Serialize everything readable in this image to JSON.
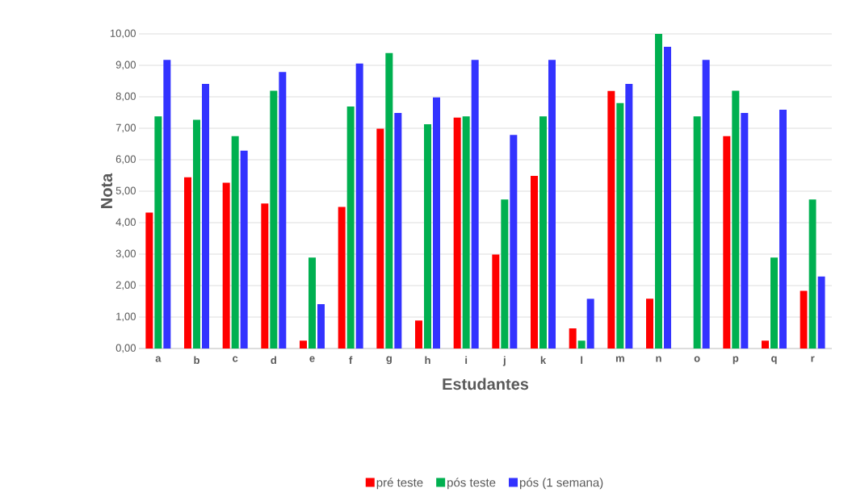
{
  "chart_data": {
    "type": "bar",
    "xlabel": "Estudantes",
    "ylabel": "Nota",
    "categories": [
      "a",
      "b",
      "c",
      "d",
      "e",
      "f",
      "g",
      "h",
      "i",
      "j",
      "k",
      "l",
      "m",
      "n",
      "o",
      "p",
      "q",
      "r"
    ],
    "series": [
      {
        "name": "pré teste",
        "color": "#ff0000",
        "values": [
          4.32,
          5.44,
          5.27,
          4.61,
          0.25,
          4.5,
          6.99,
          0.89,
          7.34,
          2.99,
          5.49,
          0.64,
          8.19,
          1.58,
          null,
          6.75,
          0.25,
          1.83
        ]
      },
      {
        "name": "pós teste",
        "color": "#00b050",
        "values": [
          7.38,
          7.27,
          6.75,
          8.19,
          2.89,
          7.69,
          9.39,
          7.13,
          7.38,
          4.74,
          7.38,
          0.25,
          7.8,
          10.0,
          7.38,
          8.19,
          2.89,
          4.74
        ]
      },
      {
        "name": "pós (1 semana)",
        "color": "#3333ff",
        "values": [
          9.17,
          8.41,
          6.29,
          8.79,
          1.41,
          9.06,
          7.49,
          7.98,
          9.17,
          6.79,
          9.17,
          1.58,
          8.41,
          9.59,
          9.17,
          7.49,
          7.59,
          2.29
        ]
      }
    ],
    "ylim": [
      0,
      10
    ],
    "yticks": [
      {
        "value": 0,
        "label": "0,00"
      },
      {
        "value": 1,
        "label": "1,00"
      },
      {
        "value": 2,
        "label": "2,00"
      },
      {
        "value": 3,
        "label": "3,00"
      },
      {
        "value": 4,
        "label": "4,00"
      },
      {
        "value": 5,
        "label": "5,00"
      },
      {
        "value": 6,
        "label": "6,00"
      },
      {
        "value": 7,
        "label": "7,00"
      },
      {
        "value": 8,
        "label": "8,00"
      },
      {
        "value": 9,
        "label": "9,00"
      },
      {
        "value": 10,
        "label": "10,00"
      }
    ],
    "grid": "y",
    "legend": "bottom"
  }
}
